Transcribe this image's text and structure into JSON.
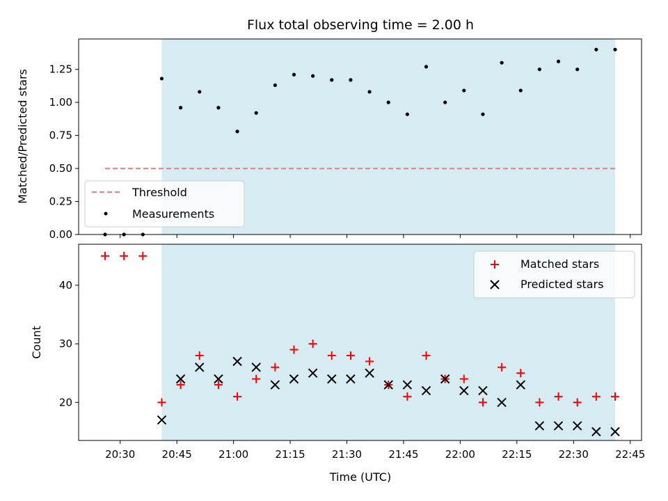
{
  "chart_data": [
    {
      "type": "scatter",
      "title": "Flux total observing time = 2.00 h",
      "xlabel": "",
      "ylabel": "Matched/Predicted stars",
      "xlim": [
        "20:19",
        "22:48"
      ],
      "ylim": [
        0,
        1.48
      ],
      "yticks": [
        0.0,
        0.25,
        0.5,
        0.75,
        1.0,
        1.25
      ],
      "legend": "lower-left",
      "shaded_span": [
        "20:41",
        "22:41"
      ],
      "shaded_color": "#add8e6",
      "series": [
        {
          "name": "Threshold",
          "kind": "dashed-line",
          "color": "#f08080",
          "x": [
            "20:26",
            "22:41"
          ],
          "y": [
            0.5,
            0.5
          ]
        },
        {
          "name": "Measurements",
          "kind": "dot",
          "color": "#000000",
          "x": [
            "20:26",
            "20:31",
            "20:36",
            "20:41",
            "20:46",
            "20:51",
            "20:56",
            "21:01",
            "21:06",
            "21:11",
            "21:16",
            "21:21",
            "21:26",
            "21:31",
            "21:36",
            "21:41",
            "21:46",
            "21:51",
            "21:56",
            "22:01",
            "22:06",
            "22:11",
            "22:16",
            "22:21",
            "22:26",
            "22:31",
            "22:36",
            "22:41"
          ],
          "y": [
            0,
            0,
            0,
            1.18,
            0.96,
            1.08,
            0.96,
            0.78,
            0.92,
            1.13,
            1.21,
            1.2,
            1.17,
            1.17,
            1.08,
            1.0,
            0.91,
            1.27,
            1.0,
            1.09,
            0.91,
            1.3,
            1.09,
            1.25,
            1.31,
            1.25,
            1.4,
            1.4
          ]
        }
      ]
    },
    {
      "type": "scatter",
      "title": "",
      "xlabel": "Time (UTC)",
      "ylabel": "Count",
      "xlim": [
        "20:19",
        "22:48"
      ],
      "ylim": [
        13.5,
        47
      ],
      "yticks": [
        20,
        30,
        40
      ],
      "xticks": [
        "20:30",
        "20:45",
        "21:00",
        "21:15",
        "21:30",
        "21:45",
        "22:00",
        "22:15",
        "22:30",
        "22:45"
      ],
      "legend": "top-right",
      "shaded_span": [
        "20:41",
        "22:41"
      ],
      "shaded_color": "#add8e6",
      "series": [
        {
          "name": "Matched stars",
          "kind": "plus",
          "color": "#ff0000",
          "x": [
            "20:26",
            "20:31",
            "20:36",
            "20:41",
            "20:46",
            "20:51",
            "20:56",
            "21:01",
            "21:06",
            "21:11",
            "21:16",
            "21:21",
            "21:26",
            "21:31",
            "21:36",
            "21:41",
            "21:46",
            "21:51",
            "21:56",
            "22:01",
            "22:06",
            "22:11",
            "22:16",
            "22:21",
            "22:26",
            "22:31",
            "22:36",
            "22:41"
          ],
          "y": [
            45,
            45,
            45,
            20,
            23,
            28,
            23,
            21,
            24,
            26,
            29,
            30,
            28,
            28,
            27,
            23,
            21,
            28,
            24,
            24,
            20,
            26,
            25,
            20,
            21,
            20,
            21,
            21
          ]
        },
        {
          "name": "Predicted stars",
          "kind": "x",
          "color": "#000000",
          "x": [
            "20:41",
            "20:46",
            "20:51",
            "20:56",
            "21:01",
            "21:06",
            "21:11",
            "21:16",
            "21:21",
            "21:26",
            "21:31",
            "21:36",
            "21:41",
            "21:46",
            "21:51",
            "21:56",
            "22:01",
            "22:06",
            "22:11",
            "22:16",
            "22:21",
            "22:26",
            "22:31",
            "22:36",
            "22:41"
          ],
          "y": [
            17,
            24,
            26,
            24,
            27,
            26,
            23,
            24,
            25,
            24,
            24,
            25,
            23,
            23,
            22,
            24,
            22,
            22,
            20,
            23,
            16,
            16,
            16,
            15,
            15
          ]
        }
      ]
    }
  ]
}
